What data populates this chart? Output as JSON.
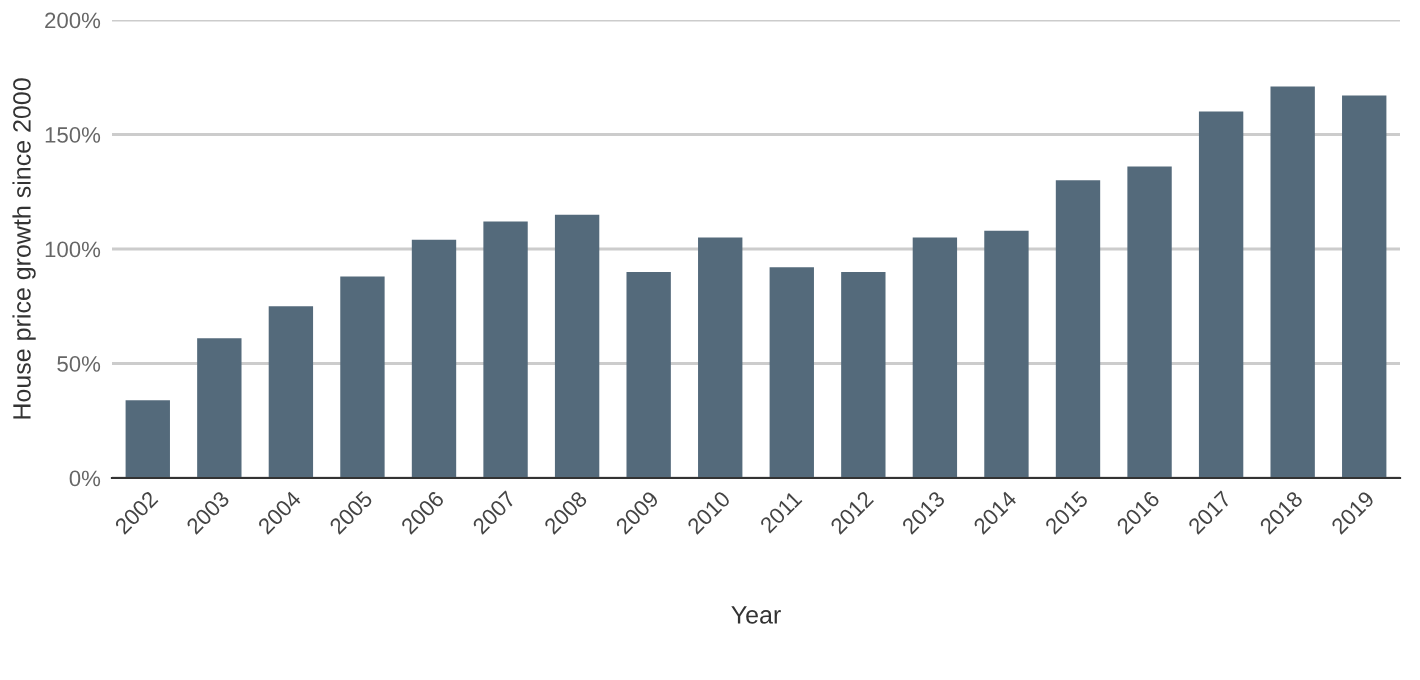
{
  "chart_data": {
    "type": "bar",
    "xlabel": "Year",
    "ylabel": "House price growth since 2000",
    "categories": [
      "2002",
      "2003",
      "2004",
      "2005",
      "2006",
      "2007",
      "2008",
      "2009",
      "2010",
      "2011",
      "2012",
      "2013",
      "2014",
      "2015",
      "2016",
      "2017",
      "2018",
      "2019"
    ],
    "values": [
      34,
      61,
      75,
      88,
      104,
      112,
      115,
      90,
      105,
      92,
      90,
      105,
      108,
      130,
      136,
      160,
      171,
      167
    ],
    "color": "#546a7b",
    "ylim": [
      0,
      200
    ],
    "yticks": [
      {
        "value": 0,
        "label": "0%"
      },
      {
        "value": 50,
        "label": "50%"
      },
      {
        "value": 100,
        "label": "100%"
      },
      {
        "value": 150,
        "label": "150%"
      },
      {
        "value": 200,
        "label": "200%"
      }
    ],
    "grid": "y"
  }
}
